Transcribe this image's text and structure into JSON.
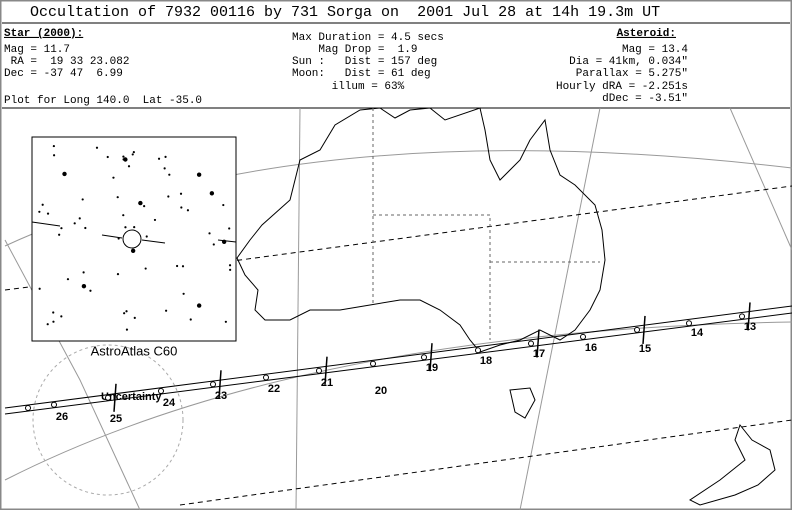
{
  "header": {
    "title": "Occultation of 7932 00116 by 731 Sorga on  2001 Jul 28 at 14h 19.3m UT"
  },
  "star": {
    "heading": "Star (2000):",
    "lines": [
      "Mag = 11.7",
      " RA =  19 33 23.082",
      "Dec = -37 47  6.99"
    ]
  },
  "circumstances": {
    "lines": [
      "Max Duration = 4.5 secs",
      "    Mag Drop =  1.9",
      "Sun :   Dist = 157 deg",
      "Moon:   Dist = 61 deg",
      "      illum = 63%"
    ]
  },
  "asteroid": {
    "heading": "Asteroid:",
    "lines": [
      "Mag = 13.4",
      "Dia = 41km, 0.034\"",
      "Parallax = 5.275\"",
      "Hourly dRA = -2.251s",
      "dDec = -3.51\""
    ]
  },
  "plot_note": "Plot for Long 140.0  Lat -35.0",
  "inset": {
    "label": "AstroAtlas C60"
  },
  "map": {
    "uncertainty_label": "Uncertainty",
    "time_labels": [
      "13",
      "14",
      "15",
      "16",
      "17",
      "18",
      "19",
      "20",
      "21",
      "22",
      "23",
      "24",
      "25",
      "26"
    ]
  }
}
